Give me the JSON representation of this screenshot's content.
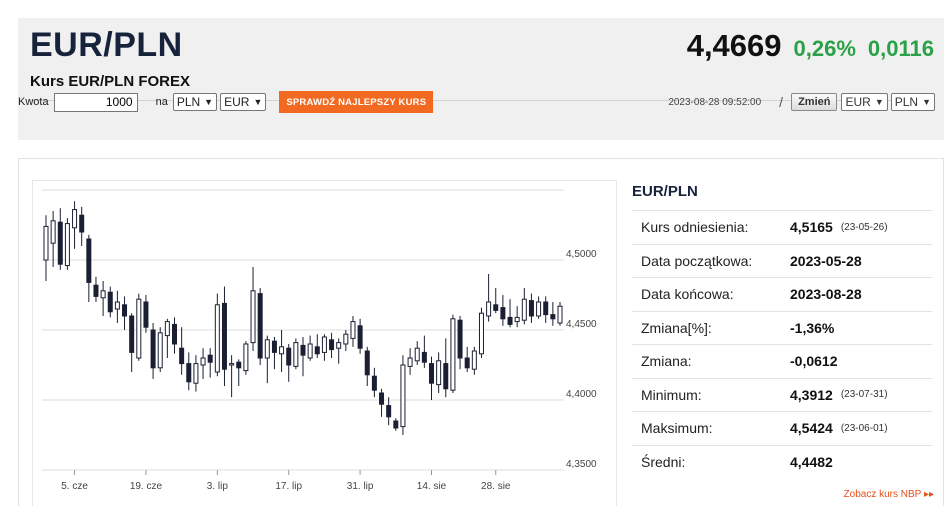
{
  "header": {
    "pair": "EUR/PLN",
    "subtitle": "Kurs EUR/PLN FOREX",
    "price": "4,4669",
    "change_pct": "0,26%",
    "change_abs": "0,0116"
  },
  "converter": {
    "amount_label": "Kwota",
    "amount_value": "1000",
    "na_label": "na",
    "from_currency": "PLN",
    "to_currency": "EUR",
    "best_rate_button": "SPRAWDŹ NAJLEPSZY KURS"
  },
  "pair_switch": {
    "timestamp": "2023-08-28 09:52:00",
    "separator": "/",
    "change_button": "Zmień",
    "base": "EUR",
    "quote": "PLN"
  },
  "stats": {
    "title": "EUR/PLN",
    "rows": [
      {
        "label": "Kurs odniesienia:",
        "value": "4,5165",
        "date": "(23-05-26)"
      },
      {
        "label": "Data początkowa:",
        "value": "2023-05-28",
        "date": ""
      },
      {
        "label": "Data końcowa:",
        "value": "2023-08-28",
        "date": ""
      },
      {
        "label": "Zmiana[%]:",
        "value": "-1,36%",
        "date": ""
      },
      {
        "label": "Zmiana:",
        "value": "-0,0612",
        "date": ""
      },
      {
        "label": "Minimum:",
        "value": "4,3912",
        "date": "(23-07-31)"
      },
      {
        "label": "Maksimum:",
        "value": "4,5424",
        "date": "(23-06-01)"
      },
      {
        "label": "Średni:",
        "value": "4,4482",
        "date": ""
      }
    ],
    "nbp_link": "Zobacz kurs NBP ▸▸"
  },
  "colors": {
    "accent": "#f26a21",
    "positive": "#2aa148",
    "title": "#17233b",
    "candle": "#1a1f33"
  },
  "chart_data": {
    "type": "candlestick",
    "x_ticks": [
      "5. cze",
      "19. cze",
      "3. lip",
      "17. lip",
      "31. lip",
      "14. sie",
      "28. sie"
    ],
    "y_ticks": [
      "4,5000",
      "4,4500",
      "4,4000",
      "4,3500"
    ],
    "y_tick_values": [
      4.5,
      4.45,
      4.4,
      4.35
    ],
    "ylim": [
      4.35,
      4.55
    ],
    "grid": true,
    "candles": [
      {
        "o": 4.5,
        "h": 4.532,
        "l": 4.485,
        "c": 4.524
      },
      {
        "o": 4.512,
        "h": 4.535,
        "l": 4.495,
        "c": 4.528
      },
      {
        "o": 4.527,
        "h": 4.537,
        "l": 4.493,
        "c": 4.497
      },
      {
        "o": 4.496,
        "h": 4.53,
        "l": 4.493,
        "c": 4.526
      },
      {
        "o": 4.523,
        "h": 4.542,
        "l": 4.508,
        "c": 4.536
      },
      {
        "o": 4.532,
        "h": 4.538,
        "l": 4.51,
        "c": 4.52
      },
      {
        "o": 4.515,
        "h": 4.518,
        "l": 4.47,
        "c": 4.484
      },
      {
        "o": 4.482,
        "h": 4.488,
        "l": 4.47,
        "c": 4.474
      },
      {
        "o": 4.473,
        "h": 4.485,
        "l": 4.46,
        "c": 4.478
      },
      {
        "o": 4.477,
        "h": 4.481,
        "l": 4.459,
        "c": 4.463
      },
      {
        "o": 4.465,
        "h": 4.478,
        "l": 4.455,
        "c": 4.47
      },
      {
        "o": 4.468,
        "h": 4.474,
        "l": 4.45,
        "c": 4.46
      },
      {
        "o": 4.46,
        "h": 4.462,
        "l": 4.42,
        "c": 4.434
      },
      {
        "o": 4.43,
        "h": 4.476,
        "l": 4.428,
        "c": 4.472
      },
      {
        "o": 4.47,
        "h": 4.475,
        "l": 4.448,
        "c": 4.452
      },
      {
        "o": 4.45,
        "h": 4.455,
        "l": 4.415,
        "c": 4.423
      },
      {
        "o": 4.423,
        "h": 4.452,
        "l": 4.42,
        "c": 4.448
      },
      {
        "o": 4.446,
        "h": 4.458,
        "l": 4.43,
        "c": 4.456
      },
      {
        "o": 4.454,
        "h": 4.459,
        "l": 4.433,
        "c": 4.44
      },
      {
        "o": 4.437,
        "h": 4.452,
        "l": 4.418,
        "c": 4.426
      },
      {
        "o": 4.426,
        "h": 4.434,
        "l": 4.407,
        "c": 4.413
      },
      {
        "o": 4.412,
        "h": 4.432,
        "l": 4.406,
        "c": 4.426
      },
      {
        "o": 4.425,
        "h": 4.437,
        "l": 4.415,
        "c": 4.43
      },
      {
        "o": 4.432,
        "h": 4.437,
        "l": 4.416,
        "c": 4.427
      },
      {
        "o": 4.42,
        "h": 4.476,
        "l": 4.417,
        "c": 4.468
      },
      {
        "o": 4.469,
        "h": 4.481,
        "l": 4.41,
        "c": 4.422
      },
      {
        "o": 4.425,
        "h": 4.432,
        "l": 4.402,
        "c": 4.426
      },
      {
        "o": 4.427,
        "h": 4.429,
        "l": 4.41,
        "c": 4.423
      },
      {
        "o": 4.421,
        "h": 4.442,
        "l": 4.418,
        "c": 4.44
      },
      {
        "o": 4.441,
        "h": 4.495,
        "l": 4.435,
        "c": 4.478
      },
      {
        "o": 4.476,
        "h": 4.48,
        "l": 4.425,
        "c": 4.43
      },
      {
        "o": 4.43,
        "h": 4.446,
        "l": 4.412,
        "c": 4.443
      },
      {
        "o": 4.442,
        "h": 4.445,
        "l": 4.422,
        "c": 4.434
      },
      {
        "o": 4.433,
        "h": 4.45,
        "l": 4.42,
        "c": 4.438
      },
      {
        "o": 4.437,
        "h": 4.44,
        "l": 4.413,
        "c": 4.425
      },
      {
        "o": 4.424,
        "h": 4.444,
        "l": 4.422,
        "c": 4.441
      },
      {
        "o": 4.439,
        "h": 4.445,
        "l": 4.417,
        "c": 4.432
      },
      {
        "o": 4.43,
        "h": 4.446,
        "l": 4.428,
        "c": 4.44
      },
      {
        "o": 4.438,
        "h": 4.447,
        "l": 4.43,
        "c": 4.433
      },
      {
        "o": 4.434,
        "h": 4.447,
        "l": 4.428,
        "c": 4.445
      },
      {
        "o": 4.443,
        "h": 4.448,
        "l": 4.43,
        "c": 4.436
      },
      {
        "o": 4.437,
        "h": 4.444,
        "l": 4.426,
        "c": 4.441
      },
      {
        "o": 4.44,
        "h": 4.45,
        "l": 4.435,
        "c": 4.447
      },
      {
        "o": 4.444,
        "h": 4.46,
        "l": 4.438,
        "c": 4.456
      },
      {
        "o": 4.453,
        "h": 4.458,
        "l": 4.433,
        "c": 4.437
      },
      {
        "o": 4.435,
        "h": 4.438,
        "l": 4.41,
        "c": 4.418
      },
      {
        "o": 4.417,
        "h": 4.423,
        "l": 4.402,
        "c": 4.407
      },
      {
        "o": 4.405,
        "h": 4.408,
        "l": 4.388,
        "c": 4.397
      },
      {
        "o": 4.396,
        "h": 4.402,
        "l": 4.382,
        "c": 4.388
      },
      {
        "o": 4.385,
        "h": 4.387,
        "l": 4.378,
        "c": 4.38
      },
      {
        "o": 4.381,
        "h": 4.432,
        "l": 4.375,
        "c": 4.425
      },
      {
        "o": 4.424,
        "h": 4.437,
        "l": 4.418,
        "c": 4.43
      },
      {
        "o": 4.428,
        "h": 4.442,
        "l": 4.425,
        "c": 4.437
      },
      {
        "o": 4.434,
        "h": 4.446,
        "l": 4.423,
        "c": 4.427
      },
      {
        "o": 4.426,
        "h": 4.431,
        "l": 4.4,
        "c": 4.412
      },
      {
        "o": 4.411,
        "h": 4.434,
        "l": 4.405,
        "c": 4.428
      },
      {
        "o": 4.426,
        "h": 4.444,
        "l": 4.402,
        "c": 4.408
      },
      {
        "o": 4.407,
        "h": 4.461,
        "l": 4.405,
        "c": 4.458
      },
      {
        "o": 4.457,
        "h": 4.46,
        "l": 4.422,
        "c": 4.43
      },
      {
        "o": 4.43,
        "h": 4.438,
        "l": 4.42,
        "c": 4.423
      },
      {
        "o": 4.422,
        "h": 4.438,
        "l": 4.418,
        "c": 4.435
      },
      {
        "o": 4.433,
        "h": 4.466,
        "l": 4.43,
        "c": 4.462
      },
      {
        "o": 4.46,
        "h": 4.49,
        "l": 4.456,
        "c": 4.47
      },
      {
        "o": 4.468,
        "h": 4.48,
        "l": 4.462,
        "c": 4.464
      },
      {
        "o": 4.466,
        "h": 4.475,
        "l": 4.453,
        "c": 4.458
      },
      {
        "o": 4.459,
        "h": 4.472,
        "l": 4.452,
        "c": 4.454
      },
      {
        "o": 4.456,
        "h": 4.467,
        "l": 4.452,
        "c": 4.459
      },
      {
        "o": 4.457,
        "h": 4.48,
        "l": 4.454,
        "c": 4.472
      },
      {
        "o": 4.471,
        "h": 4.476,
        "l": 4.455,
        "c": 4.46
      },
      {
        "o": 4.46,
        "h": 4.474,
        "l": 4.458,
        "c": 4.47
      },
      {
        "o": 4.47,
        "h": 4.474,
        "l": 4.455,
        "c": 4.461
      },
      {
        "o": 4.461,
        "h": 4.47,
        "l": 4.453,
        "c": 4.458
      },
      {
        "o": 4.455,
        "h": 4.47,
        "l": 4.453,
        "c": 4.467
      }
    ]
  }
}
